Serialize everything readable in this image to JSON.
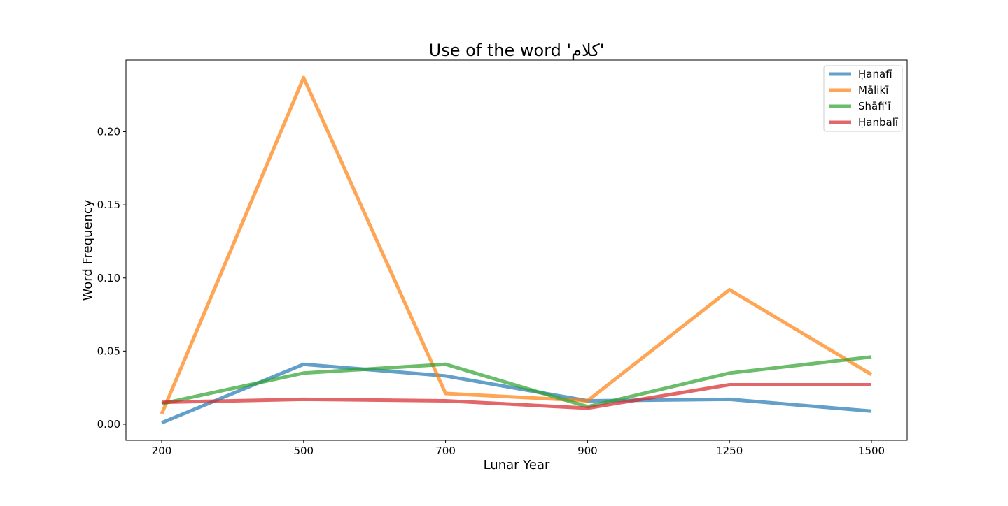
{
  "chart_data": {
    "type": "line",
    "title": "Use of the word 'كلام'",
    "xlabel": "Lunar Year",
    "ylabel": "Word Frequency",
    "categories": [
      "200",
      "500",
      "700",
      "900",
      "1250",
      "1500"
    ],
    "ylim": [
      -0.011,
      0.249
    ],
    "yticks": [
      "0.00",
      "0.05",
      "0.10",
      "0.15",
      "0.20"
    ],
    "ytick_values": [
      0.0,
      0.05,
      0.1,
      0.15,
      0.2
    ],
    "grid": false,
    "legend_position": "top-right",
    "series": [
      {
        "name": "Ḥanafī",
        "color": "#1f77b4",
        "values": [
          0.001,
          0.041,
          0.033,
          0.016,
          0.017,
          0.009
        ]
      },
      {
        "name": "Mālikī",
        "color": "#ff7f0e",
        "values": [
          0.007,
          0.237,
          0.021,
          0.016,
          0.092,
          0.034
        ]
      },
      {
        "name": "Shāfiʿī",
        "color": "#2ca02c",
        "values": [
          0.014,
          0.035,
          0.041,
          0.012,
          0.035,
          0.046
        ]
      },
      {
        "name": "Ḥanbalī",
        "color": "#d62728",
        "values": [
          0.015,
          0.017,
          0.016,
          0.011,
          0.027,
          0.027
        ]
      }
    ]
  }
}
